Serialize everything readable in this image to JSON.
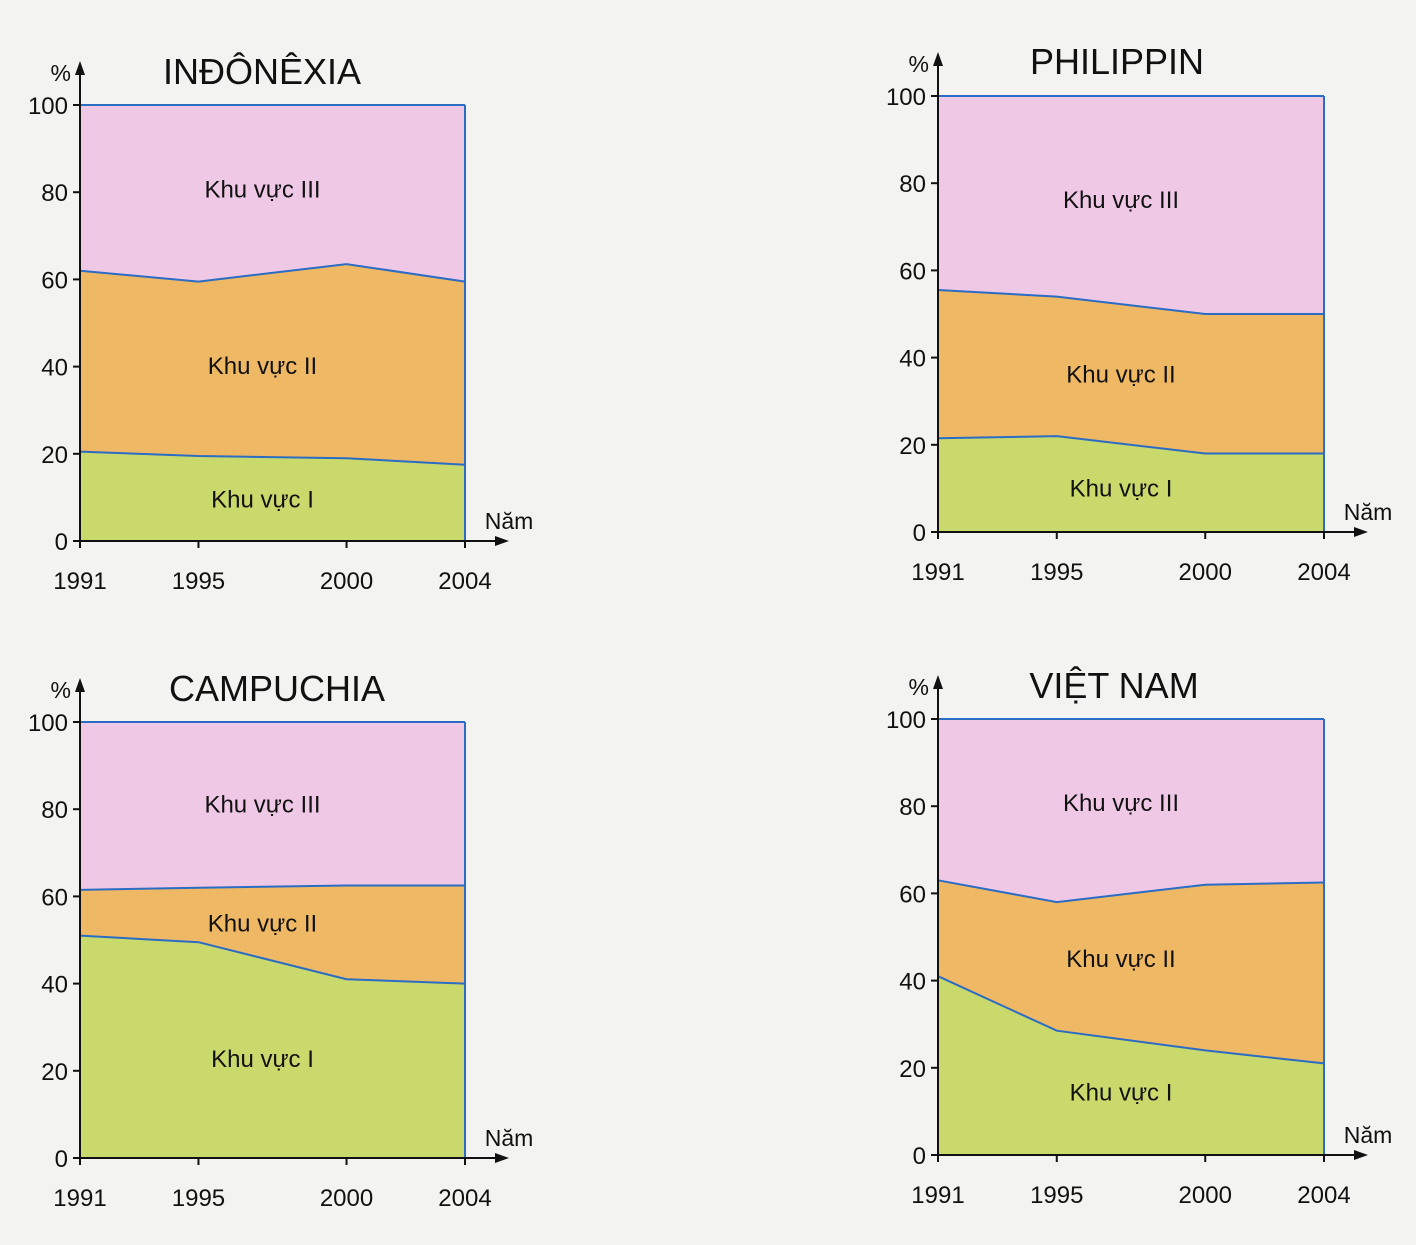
{
  "chart_data": [
    {
      "type": "area",
      "stacked": true,
      "title": "INĐÔNÊXIA",
      "y_label": "%",
      "x_label": "Năm",
      "x": [
        1991,
        1995,
        2000,
        2004
      ],
      "xlim": [
        1991,
        2004
      ],
      "xticks": [
        1991,
        1995,
        2000,
        2004
      ],
      "ylim": [
        0,
        100
      ],
      "yticks": [
        0,
        20,
        40,
        60,
        80,
        100
      ],
      "line_color": "#2b6cc4",
      "series": [
        {
          "name": "Khu vực I",
          "color": "#c9d96b",
          "values": [
            20.5,
            19.5,
            19,
            17.5
          ]
        },
        {
          "name": "Khu vực II",
          "color": "#efb865",
          "values": [
            41.5,
            40,
            44.5,
            42
          ]
        },
        {
          "name": "Khu vực III",
          "color": "#efc8e6",
          "values": [
            38,
            40.5,
            36.5,
            40.5
          ]
        }
      ]
    },
    {
      "type": "area",
      "stacked": true,
      "title": "PHILIPPIN",
      "y_label": "%",
      "x_label": "Năm",
      "x": [
        1991,
        1995,
        2000,
        2004
      ],
      "xlim": [
        1991,
        2004
      ],
      "xticks": [
        1991,
        1995,
        2000,
        2004
      ],
      "ylim": [
        0,
        100
      ],
      "yticks": [
        0,
        20,
        40,
        60,
        80,
        100
      ],
      "line_color": "#2b6cc4",
      "series": [
        {
          "name": "Khu vực I",
          "color": "#c9d96b",
          "values": [
            21.5,
            22,
            18,
            18
          ]
        },
        {
          "name": "Khu vực II",
          "color": "#efb865",
          "values": [
            34,
            32,
            32,
            32
          ]
        },
        {
          "name": "Khu vực III",
          "color": "#efc8e6",
          "values": [
            44.5,
            46,
            50,
            50
          ]
        }
      ]
    },
    {
      "type": "area",
      "stacked": true,
      "title": "CAMPUCHIA",
      "y_label": "%",
      "x_label": "Năm",
      "x": [
        1991,
        1995,
        2000,
        2004
      ],
      "xlim": [
        1991,
        2004
      ],
      "xticks": [
        1991,
        1995,
        2000,
        2004
      ],
      "ylim": [
        0,
        100
      ],
      "yticks": [
        0,
        20,
        40,
        60,
        80,
        100
      ],
      "line_color": "#2b6cc4",
      "series": [
        {
          "name": "Khu vực I",
          "color": "#c9d96b",
          "values": [
            51,
            49.5,
            41,
            40
          ]
        },
        {
          "name": "Khu vực II",
          "color": "#efb865",
          "values": [
            10.5,
            12.5,
            21.5,
            22.5
          ]
        },
        {
          "name": "Khu vực III",
          "color": "#efc8e6",
          "values": [
            38.5,
            38,
            37.5,
            37.5
          ]
        }
      ]
    },
    {
      "type": "area",
      "stacked": true,
      "title": "VIỆT NAM",
      "y_label": "%",
      "x_label": "Năm",
      "x": [
        1991,
        1995,
        2000,
        2004
      ],
      "xlim": [
        1991,
        2004
      ],
      "xticks": [
        1991,
        1995,
        2000,
        2004
      ],
      "ylim": [
        0,
        100
      ],
      "yticks": [
        0,
        20,
        40,
        60,
        80,
        100
      ],
      "line_color": "#2b6cc4",
      "series": [
        {
          "name": "Khu vực I",
          "color": "#c9d96b",
          "values": [
            41,
            28.5,
            24,
            21
          ]
        },
        {
          "name": "Khu vực II",
          "color": "#efb865",
          "values": [
            22,
            29.5,
            38,
            41.5
          ]
        },
        {
          "name": "Khu vực III",
          "color": "#efc8e6",
          "values": [
            37,
            42,
            38,
            37.5
          ]
        }
      ]
    }
  ]
}
